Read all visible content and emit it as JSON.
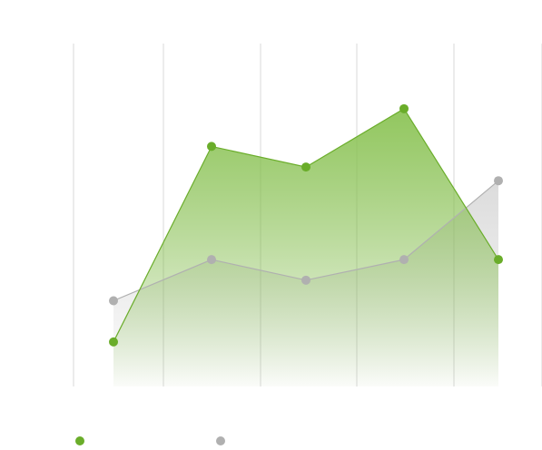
{
  "colors": {
    "series_green": "#6aad2a",
    "series_gray": "#b0b0b0",
    "grid": "#d9d9d9",
    "background": "#ffffff"
  },
  "chart_data": {
    "type": "area",
    "title": "",
    "xlabel": "",
    "ylabel": "",
    "categories": [
      "",
      "",
      "",
      "",
      ""
    ],
    "ylim": [
      0,
      100
    ],
    "grid": true,
    "legend_position": "bottom-left",
    "series": [
      {
        "name": "",
        "color": "#6aad2a",
        "values": [
          13,
          70,
          64,
          81,
          37
        ]
      },
      {
        "name": "",
        "color": "#b0b0b0",
        "values": [
          25,
          37,
          31,
          37,
          60
        ]
      }
    ]
  }
}
